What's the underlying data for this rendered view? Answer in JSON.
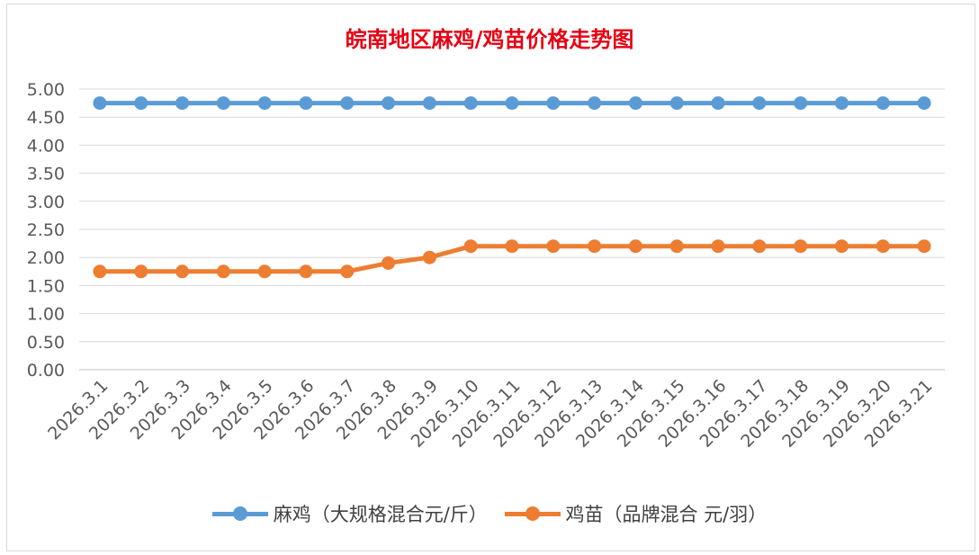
{
  "chart_data": {
    "type": "line",
    "title": "皖南地区麻鸡/鸡苗价格走势图",
    "categories": [
      "2026.3.1",
      "2026.3.2",
      "2026.3.3",
      "2026.3.4",
      "2026.3.5",
      "2026.3.6",
      "2026.3.7",
      "2026.3.8",
      "2026.3.9",
      "2026.3.10",
      "2026.3.11",
      "2026.3.12",
      "2026.3.13",
      "2026.3.14",
      "2026.3.15",
      "2026.3.16",
      "2026.3.17",
      "2026.3.18",
      "2026.3.19",
      "2026.3.20",
      "2026.3.21"
    ],
    "series": [
      {
        "name": "麻鸡（大规格混合元/斤）",
        "color": "#5b9bd5",
        "values": [
          4.75,
          4.75,
          4.75,
          4.75,
          4.75,
          4.75,
          4.75,
          4.75,
          4.75,
          4.75,
          4.75,
          4.75,
          4.75,
          4.75,
          4.75,
          4.75,
          4.75,
          4.75,
          4.75,
          4.75,
          4.75
        ]
      },
      {
        "name": "鸡苗（品牌混合 元/羽）",
        "color": "#ed7d31",
        "values": [
          1.75,
          1.75,
          1.75,
          1.75,
          1.75,
          1.75,
          1.75,
          1.9,
          2.0,
          2.2,
          2.2,
          2.2,
          2.2,
          2.2,
          2.2,
          2.2,
          2.2,
          2.2,
          2.2,
          2.2,
          2.2
        ]
      }
    ],
    "y_ticks": [
      "0.00",
      "0.50",
      "1.00",
      "1.50",
      "2.00",
      "2.50",
      "3.00",
      "3.50",
      "4.00",
      "4.50",
      "5.00"
    ],
    "ylim": [
      0,
      5
    ],
    "grid": true,
    "legend_position": "bottom",
    "xlabel": "",
    "ylabel": ""
  }
}
